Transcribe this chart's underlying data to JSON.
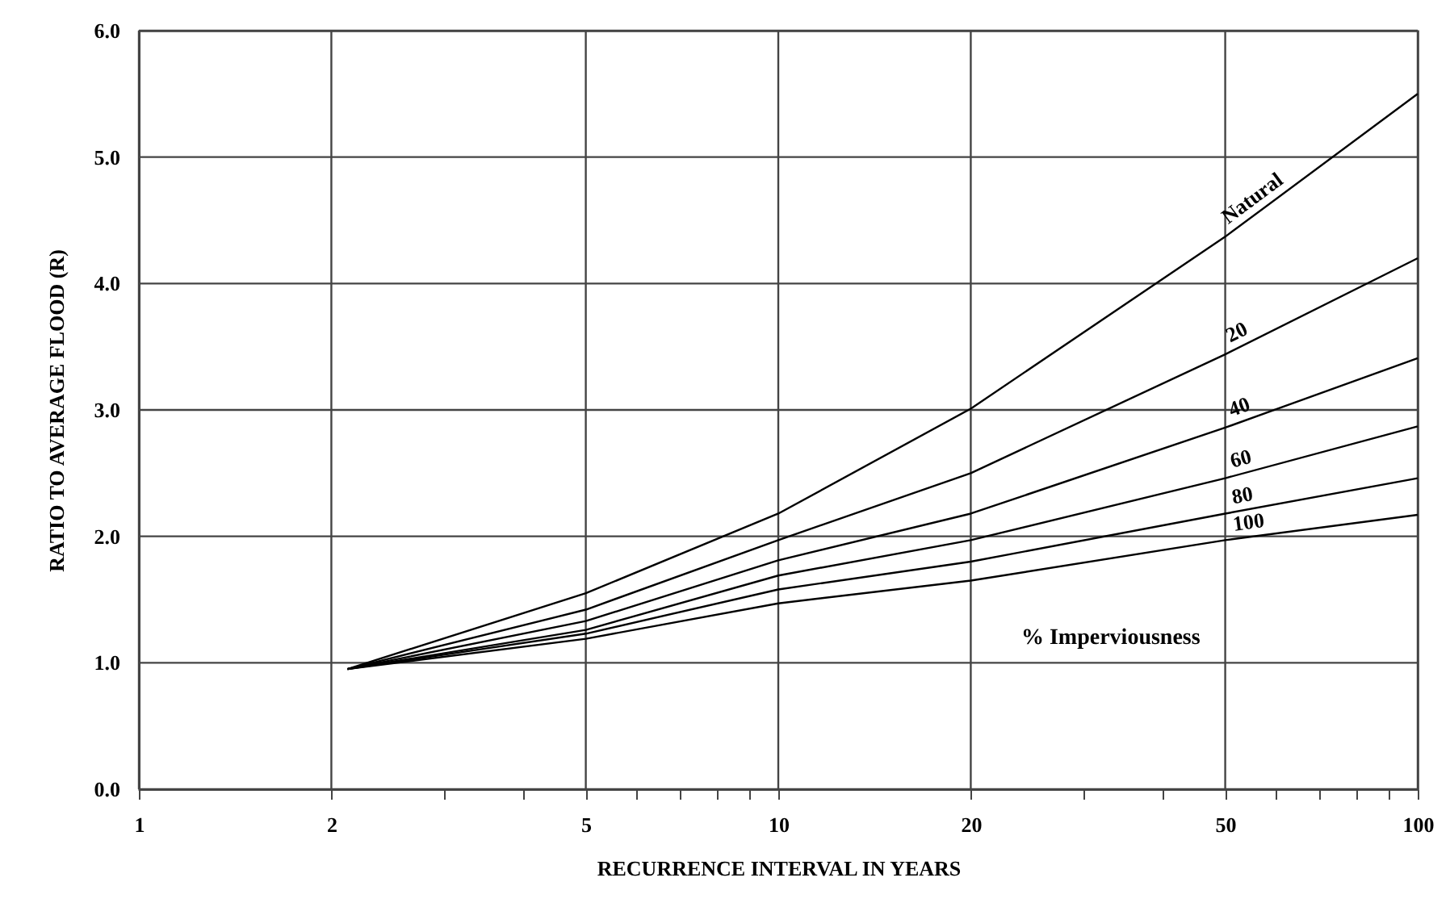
{
  "chart_data": {
    "type": "line",
    "xlabel": "RECURRENCE INTERVAL IN YEARS",
    "ylabel": "RATIO TO AVERAGE FLOOD (R)",
    "x": [
      2.12,
      5,
      10,
      20,
      50,
      100
    ],
    "series": [
      {
        "name": "Natural",
        "color": "#000000",
        "values": [
          0.95,
          1.55,
          2.18,
          3.01,
          4.37,
          5.5
        ]
      },
      {
        "name": "20",
        "color": "#000000",
        "values": [
          0.95,
          1.42,
          1.97,
          2.5,
          3.44,
          4.2
        ]
      },
      {
        "name": "40",
        "color": "#000000",
        "values": [
          0.95,
          1.33,
          1.81,
          2.18,
          2.86,
          3.41
        ]
      },
      {
        "name": "60",
        "color": "#000000",
        "values": [
          0.95,
          1.26,
          1.69,
          1.97,
          2.46,
          2.87
        ]
      },
      {
        "name": "80",
        "color": "#000000",
        "values": [
          0.95,
          1.23,
          1.58,
          1.8,
          2.18,
          2.46
        ]
      },
      {
        "name": "100",
        "color": "#000000",
        "values": [
          0.95,
          1.19,
          1.47,
          1.65,
          1.97,
          2.17
        ]
      }
    ],
    "annotations": [
      "% Imperviousness"
    ],
    "log": "x",
    "xlim": [
      1,
      100
    ],
    "xticks": [
      1,
      2,
      {
        "value": 3,
        "label": null
      },
      {
        "value": 4,
        "label": null
      },
      5,
      {
        "value": 6,
        "label": null
      },
      {
        "value": 7,
        "label": null
      },
      {
        "value": 8,
        "label": null
      },
      {
        "value": 9,
        "label": null
      },
      10,
      20,
      {
        "value": 30,
        "label": null
      },
      {
        "value": 40,
        "label": null
      },
      50,
      {
        "value": 60,
        "label": null
      },
      {
        "value": 70,
        "label": null
      },
      {
        "value": 80,
        "label": null
      },
      {
        "value": 90,
        "label": null
      },
      100
    ],
    "ylim": [
      0,
      6
    ],
    "yticks": [
      {
        "value": 0,
        "label": "0.0"
      },
      {
        "value": 1,
        "label": "1.0"
      },
      {
        "value": 2,
        "label": "2.0"
      },
      {
        "value": 3,
        "label": "3.0"
      },
      {
        "value": 4,
        "label": "4.0"
      },
      {
        "value": 5,
        "label": "5.0"
      },
      {
        "value": 6,
        "label": "6.0"
      }
    ],
    "grid": true,
    "marker": "none",
    "line_style": "solid"
  }
}
